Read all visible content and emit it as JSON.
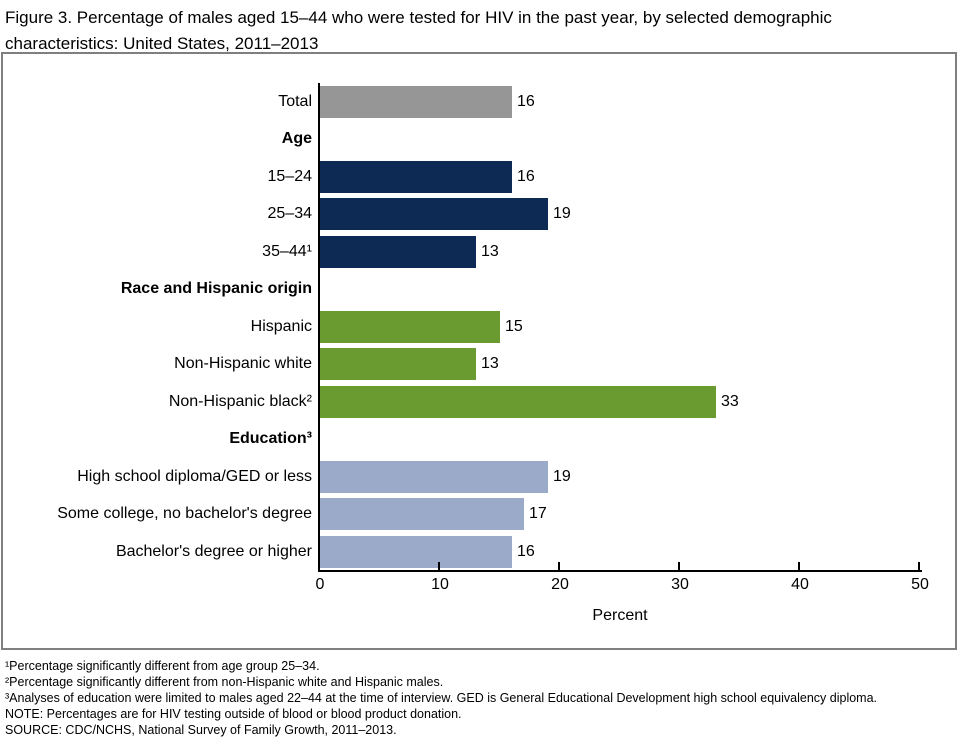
{
  "figure": {
    "title": "Figure 3. Percentage of males aged 15–44 who were tested for HIV in the past year, by selected demographic characteristics: United States, 2011–2013"
  },
  "chart_data": {
    "type": "bar",
    "orientation": "horizontal",
    "xlabel": "Percent",
    "xlim": [
      0,
      50
    ],
    "xticks": [
      0,
      10,
      20,
      30,
      40,
      50
    ],
    "grid": false,
    "legend": "none",
    "value_labels": "end-of-bar",
    "colors": {
      "total": "#969696",
      "age": "#0c2a54",
      "race": "#6a9b30",
      "education": "#9baac9"
    },
    "rows": [
      {
        "type": "bar",
        "label": "Total",
        "value": 16,
        "group": "total"
      },
      {
        "type": "header",
        "label": "Age"
      },
      {
        "type": "bar",
        "label": "15–24",
        "value": 16,
        "group": "age"
      },
      {
        "type": "bar",
        "label": "25–34",
        "value": 19,
        "group": "age"
      },
      {
        "type": "bar",
        "label": "35–44¹",
        "value": 13,
        "group": "age"
      },
      {
        "type": "header",
        "label": "Race and Hispanic origin"
      },
      {
        "type": "bar",
        "label": "Hispanic",
        "value": 15,
        "group": "race"
      },
      {
        "type": "bar",
        "label": "Non-Hispanic white",
        "value": 13,
        "group": "race"
      },
      {
        "type": "bar",
        "label": "Non-Hispanic black²",
        "value": 33,
        "group": "race"
      },
      {
        "type": "header",
        "label": "Education³"
      },
      {
        "type": "bar",
        "label": "High school diploma/GED or less",
        "value": 19,
        "group": "education"
      },
      {
        "type": "bar",
        "label": "Some college, no bachelor's degree",
        "value": 17,
        "group": "education"
      },
      {
        "type": "bar",
        "label": "Bachelor's degree or higher",
        "value": 16,
        "group": "education"
      }
    ]
  },
  "footnotes": [
    "¹Percentage significantly different from age group 25–34.",
    "²Percentage significantly different from non-Hispanic white and Hispanic males.",
    "³Analyses of education were limited to males aged 22–44 at the time of interview. GED is General Educational Development high school equivalency diploma.",
    "NOTE: Percentages are for HIV testing outside of blood or blood product donation.",
    "SOURCE: CDC/NCHS, National Survey of Family Growth, 2011–2013."
  ]
}
